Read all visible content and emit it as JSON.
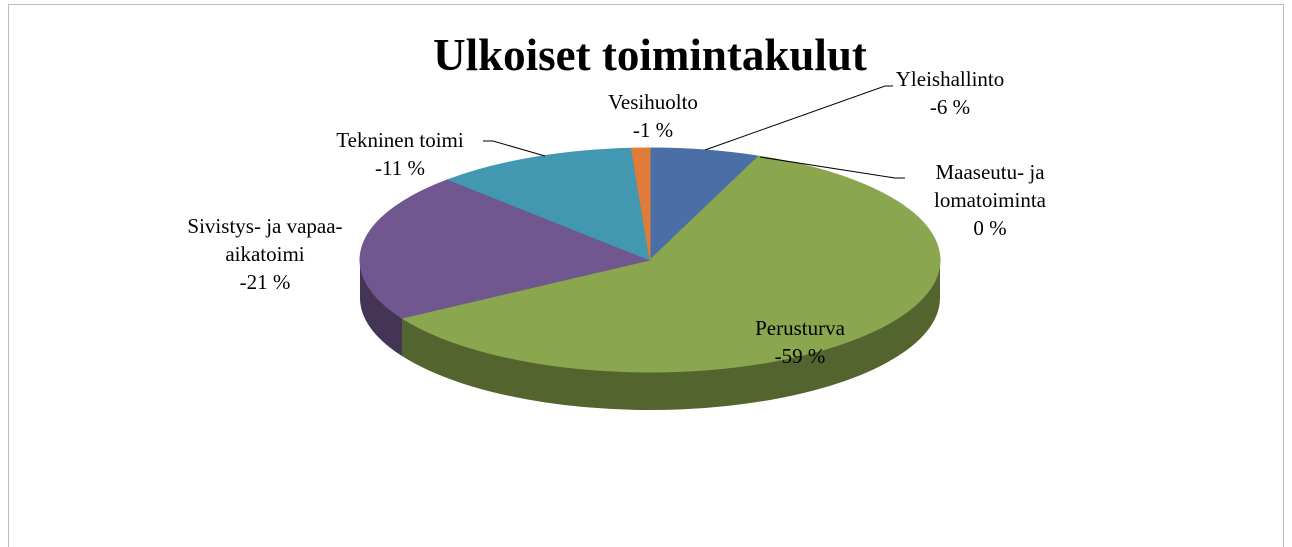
{
  "chart_data": {
    "type": "pie3d",
    "title": "Ulkoiset toimintakulut",
    "categories": [
      "Yleishallinto",
      "Maaseutu- ja lomatoiminta",
      "Perusturva",
      "Sivistys- ja vapaa-aikatoimi",
      "Tekninen toimi",
      "Vesihuolto"
    ],
    "values": [
      -6,
      0,
      -59,
      -21,
      -11,
      -1
    ],
    "value_labels": [
      "-6 %",
      "0 %",
      "-59 %",
      "-21 %",
      "-11 %",
      "-1 %"
    ],
    "colors": [
      "#4a6fa6",
      "#c0504d",
      "#8aa64e",
      "#71578f",
      "#4298b0",
      "#e07b39"
    ]
  }
}
